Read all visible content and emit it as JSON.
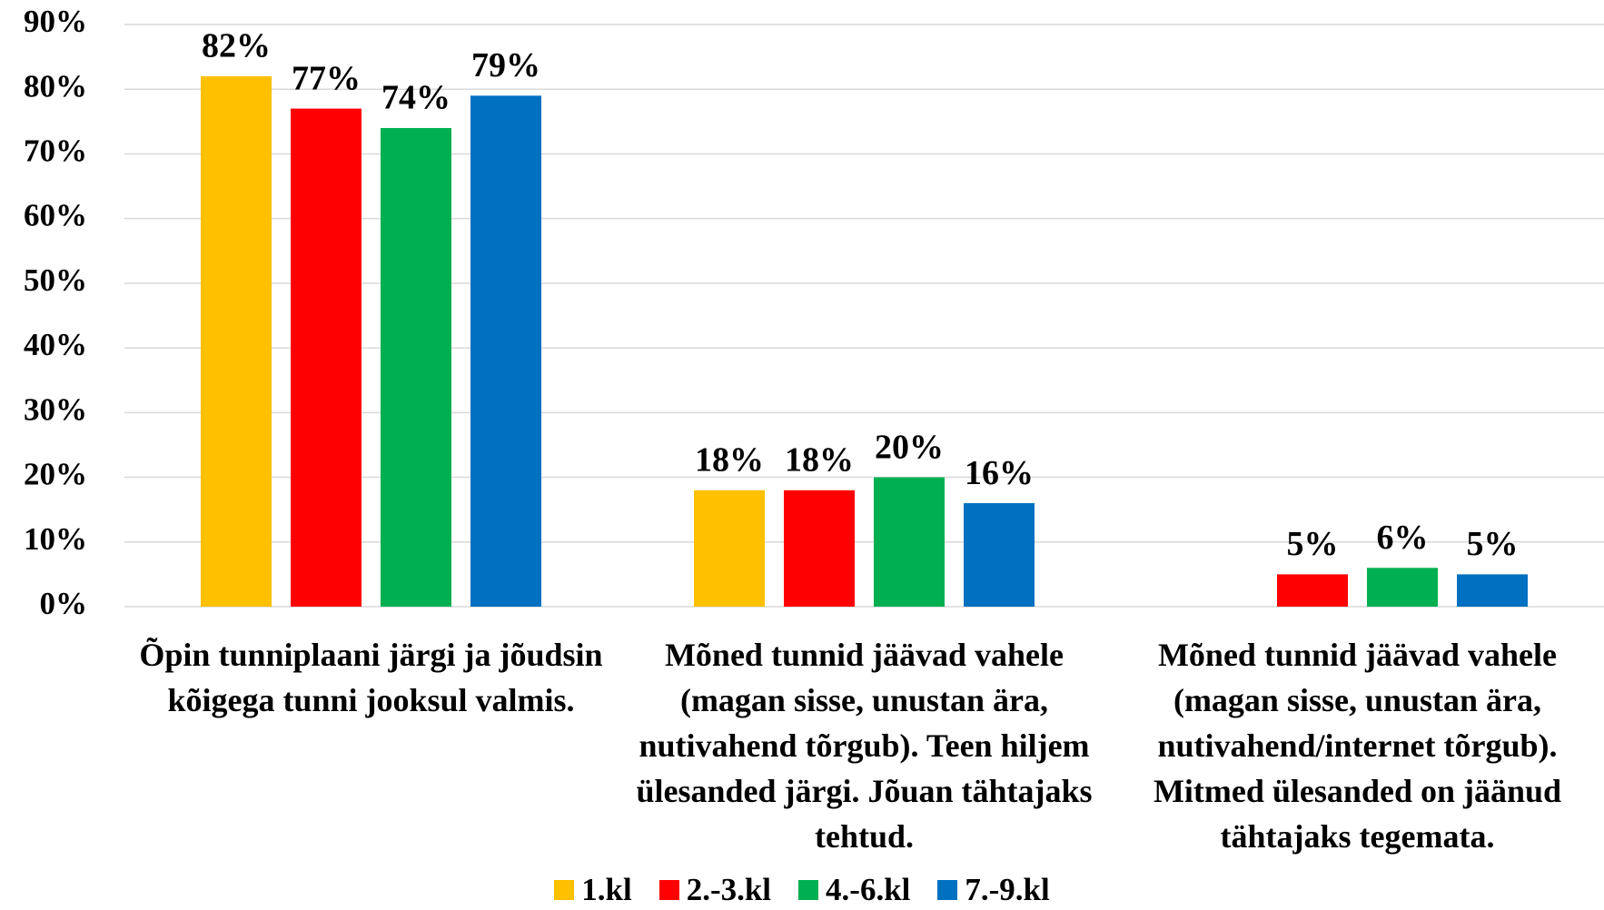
{
  "chart_data": {
    "type": "bar",
    "categories": [
      "Õpin tunniplaani järgi ja jõudsin kõigega tunni jooksul valmis.",
      "Mõned tunnid jäävad vahele (magan sisse, unustan ära, nutivahend tõrgub). Teen hiljem ülesanded järgi. Jõuan tähtajaks tehtud.",
      "Mõned tunnid jäävad vahele (magan sisse, unustan ära, nutivahend/internet tõrgub). Mitmed ülesanded on jäänud tähtajaks tegemata."
    ],
    "series": [
      {
        "name": "1.kl",
        "color": "#ffc000",
        "values": [
          82,
          18,
          null
        ],
        "value_labels": [
          "82%",
          "18%",
          null
        ]
      },
      {
        "name": "2.-3.kl",
        "color": "#ff0000",
        "values": [
          77,
          18,
          5
        ],
        "value_labels": [
          "77%",
          "18%",
          "5%"
        ]
      },
      {
        "name": "4.-6.kl",
        "color": "#00b050",
        "values": [
          74,
          20,
          6
        ],
        "value_labels": [
          "74%",
          "20%",
          "6%"
        ]
      },
      {
        "name": "7.-9.kl",
        "color": "#0070c0",
        "values": [
          79,
          16,
          5
        ],
        "value_labels": [
          "79%",
          "16%",
          "5%"
        ]
      }
    ],
    "ylim": [
      0,
      90
    ],
    "yticks": [
      {
        "value": 0,
        "label": "0%"
      },
      {
        "value": 10,
        "label": "10%"
      },
      {
        "value": 20,
        "label": "20%"
      },
      {
        "value": 30,
        "label": "30%"
      },
      {
        "value": 40,
        "label": "40%"
      },
      {
        "value": 50,
        "label": "50%"
      },
      {
        "value": 60,
        "label": "60%"
      },
      {
        "value": 70,
        "label": "70%"
      },
      {
        "value": 80,
        "label": "80%"
      },
      {
        "value": 90,
        "label": "90%"
      }
    ],
    "grid": true,
    "legend": "bottom"
  }
}
